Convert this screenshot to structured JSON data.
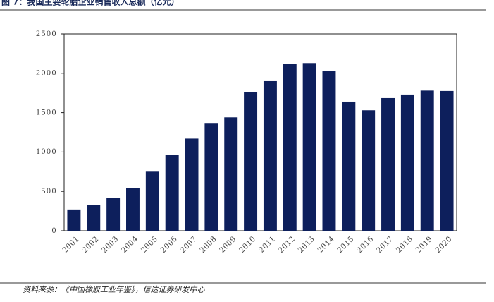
{
  "chart_data": {
    "type": "bar",
    "title": "图 7：我国主要轮胎企业销售收入总额（亿元）",
    "source": "资料来源：《中国橡胶工业年鉴》，信达证券研发中心",
    "categories": [
      "2001",
      "2002",
      "2003",
      "2004",
      "2005",
      "2006",
      "2007",
      "2008",
      "2009",
      "2010",
      "2011",
      "2012",
      "2013",
      "2014",
      "2015",
      "2016",
      "2017",
      "2018",
      "2019",
      "2020"
    ],
    "values": [
      270,
      330,
      420,
      540,
      750,
      960,
      1170,
      1360,
      1440,
      1765,
      1900,
      2115,
      2130,
      2025,
      1640,
      1530,
      1685,
      1730,
      1780,
      1775
    ],
    "color": "#0d1f5c",
    "ylim": [
      0,
      2500
    ],
    "yticks": [
      0,
      500,
      1000,
      1500,
      2000,
      2500
    ],
    "grid": false
  }
}
